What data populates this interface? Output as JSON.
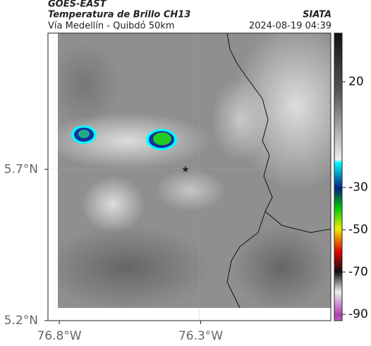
{
  "header": {
    "source": "GOES-EAST",
    "title": "Temperatura de Brillo CH13",
    "route": "Vía Medellín - Quibdó 50km",
    "brand": "SIATA",
    "timestamp": "2024-08-19 04:39"
  },
  "map": {
    "xlim": [
      -76.84,
      -75.84
    ],
    "ylim": [
      5.2,
      6.15
    ],
    "xticks": [
      {
        "value": -76.8,
        "label": "76.8°W"
      },
      {
        "value": -76.3,
        "label": "76.3°W"
      }
    ],
    "yticks": [
      {
        "value": 5.7,
        "label": "5.7°N"
      },
      {
        "value": 5.2,
        "label": "5.2°N"
      }
    ]
  },
  "colorbar": {
    "lim": [
      -93,
      43
    ],
    "ticks": [
      20,
      -30,
      -50,
      -70,
      -90
    ]
  }
}
